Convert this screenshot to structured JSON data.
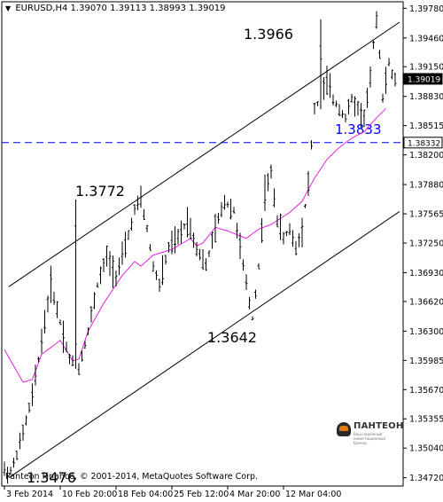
{
  "header": {
    "symbol": "EURUSD,H4",
    "open": "1.39070",
    "high": "1.39113",
    "low": "1.38993",
    "close": "1.39019"
  },
  "copyright": "Panteon Finance, © 2001-2014, MetaQuotes Software Corp.",
  "logo": {
    "name": "ПАНТЕОН",
    "sub": "Ваш надежный инвестиционный брокер"
  },
  "chart_data": {
    "type": "candlestick",
    "symbol": "EURUSD",
    "timeframe": "H4",
    "ylim": [
      1.3465,
      1.3985
    ],
    "y_ticks": [
      "1.39780",
      "1.39460",
      "1.39150",
      "1.38830",
      "1.38515",
      "1.38200",
      "1.37880",
      "1.37565",
      "1.37250",
      "1.36930",
      "1.36620",
      "1.36300",
      "1.35985",
      "1.35670",
      "1.35355",
      "1.35040",
      "1.34720"
    ],
    "x_ticks": [
      "3 Feb 2014",
      "10 Feb 20:00",
      "18 Feb 04:00",
      "25 Feb 12:00",
      "4 Mar 20:00",
      "12 Mar 04:00"
    ],
    "current_price": "1.39019",
    "level_line": {
      "value": 1.38332,
      "label": "1.3833",
      "axis_label": "1.38332",
      "color": "#0000ff"
    },
    "channel_upper": [
      [
        0,
        1.3678
      ],
      [
        126,
        1.3963
      ]
    ],
    "channel_lower": [
      [
        0,
        1.3472
      ],
      [
        126,
        1.3759
      ]
    ],
    "annotations": [
      {
        "text": "1.3966",
        "idx": 102,
        "value": 1.3966
      },
      {
        "text": "1.3772",
        "idx": 23,
        "value": 1.3772
      },
      {
        "text": "1.3642",
        "idx": 80,
        "value": 1.3642
      },
      {
        "text": "1.3476",
        "idx": 2,
        "value": 1.3476
      }
    ],
    "ma_color": "#e020e0",
    "bar_color": "#000000",
    "ma_anchors": [
      [
        0,
        1.361
      ],
      [
        6,
        1.3575
      ],
      [
        9,
        1.3578
      ],
      [
        12,
        1.3605
      ],
      [
        18,
        1.362
      ],
      [
        22,
        1.3598
      ],
      [
        24,
        1.36
      ],
      [
        27,
        1.363
      ],
      [
        32,
        1.366
      ],
      [
        38,
        1.369
      ],
      [
        42,
        1.3705
      ],
      [
        44,
        1.37
      ],
      [
        48,
        1.3712
      ],
      [
        54,
        1.3718
      ],
      [
        56,
        1.3722
      ],
      [
        60,
        1.373
      ],
      [
        62,
        1.3722
      ],
      [
        64,
        1.3725
      ],
      [
        68,
        1.3742
      ],
      [
        72,
        1.3738
      ],
      [
        78,
        1.373
      ],
      [
        82,
        1.374
      ],
      [
        86,
        1.3745
      ],
      [
        92,
        1.3758
      ],
      [
        96,
        1.377
      ],
      [
        100,
        1.3795
      ],
      [
        104,
        1.3815
      ],
      [
        108,
        1.3828
      ],
      [
        112,
        1.3838
      ],
      [
        116,
        1.3845
      ],
      [
        120,
        1.386
      ],
      [
        123,
        1.387
      ]
    ],
    "price_anchors": [
      [
        0,
        1.348
      ],
      [
        2,
        1.3476
      ],
      [
        6,
        1.352
      ],
      [
        9,
        1.356
      ],
      [
        12,
        1.362
      ],
      [
        15,
        1.368
      ],
      [
        18,
        1.364
      ],
      [
        21,
        1.36
      ],
      [
        24,
        1.359
      ],
      [
        27,
        1.363
      ],
      [
        30,
        1.368
      ],
      [
        33,
        1.371
      ],
      [
        36,
        1.369
      ],
      [
        39,
        1.372
      ],
      [
        42,
        1.376
      ],
      [
        44,
        1.3772
      ],
      [
        46,
        1.374
      ],
      [
        48,
        1.37
      ],
      [
        50,
        1.368
      ],
      [
        53,
        1.372
      ],
      [
        56,
        1.373
      ],
      [
        59,
        1.375
      ],
      [
        62,
        1.372
      ],
      [
        65,
        1.37
      ],
      [
        68,
        1.374
      ],
      [
        71,
        1.377
      ],
      [
        74,
        1.376
      ],
      [
        77,
        1.37
      ],
      [
        79,
        1.366
      ],
      [
        80,
        1.3642
      ],
      [
        82,
        1.37
      ],
      [
        84,
        1.378
      ],
      [
        86,
        1.38
      ],
      [
        88,
        1.375
      ],
      [
        90,
        1.373
      ],
      [
        92,
        1.374
      ],
      [
        94,
        1.372
      ],
      [
        96,
        1.374
      ],
      [
        98,
        1.379
      ],
      [
        100,
        1.387
      ],
      [
        102,
        1.388
      ],
      [
        104,
        1.39
      ],
      [
        106,
        1.388
      ],
      [
        108,
        1.387
      ],
      [
        110,
        1.386
      ],
      [
        112,
        1.388
      ],
      [
        114,
        1.387
      ],
      [
        116,
        1.386
      ],
      [
        118,
        1.39
      ],
      [
        119,
        1.394
      ],
      [
        120,
        1.3966
      ],
      [
        121,
        1.393
      ],
      [
        122,
        1.388
      ],
      [
        123,
        1.39
      ],
      [
        124,
        1.392
      ],
      [
        125,
        1.3905
      ],
      [
        126,
        1.3902
      ]
    ]
  }
}
